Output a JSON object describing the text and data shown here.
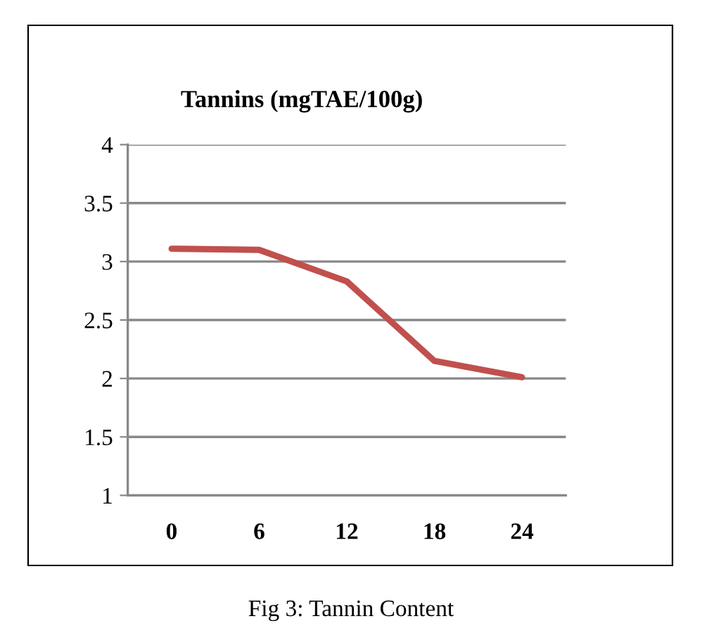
{
  "chart_data": {
    "type": "line",
    "title": "Tannins (mgTAE/100g)",
    "categories": [
      "0",
      "6",
      "12",
      "18",
      "24"
    ],
    "series": [
      {
        "color": "#c0504d",
        "values": [
          3.11,
          3.1,
          2.83,
          2.15,
          2.01
        ]
      }
    ],
    "ylim": [
      1,
      4
    ],
    "yticks": [
      1,
      1.5,
      2,
      2.5,
      3,
      3.5,
      4
    ],
    "grid": "y",
    "legend": false,
    "marker": "none",
    "line_style": "solid",
    "annotations": [
      "Fig 3: Tannin Content"
    ]
  }
}
